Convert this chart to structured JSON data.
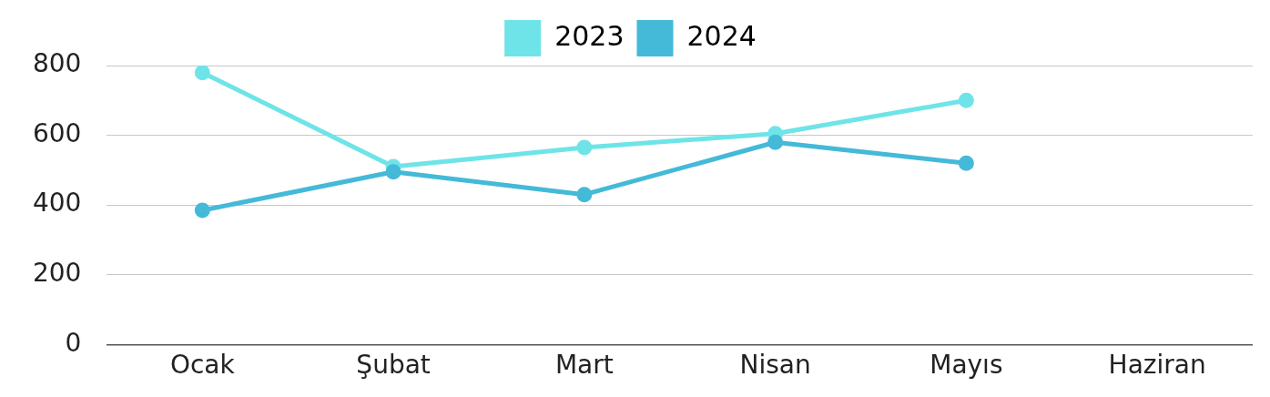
{
  "chart_data": {
    "type": "line",
    "categories": [
      "Ocak",
      "Şubat",
      "Mart",
      "Nisan",
      "Mayıs",
      "Haziran"
    ],
    "series": [
      {
        "name": "2023",
        "color": "#6ee4e8",
        "values": [
          780,
          510,
          565,
          605,
          700,
          null
        ]
      },
      {
        "name": "2024",
        "color": "#44b9d8",
        "values": [
          385,
          495,
          430,
          580,
          520,
          null
        ]
      }
    ],
    "ylim": [
      0,
      800
    ],
    "yticks": [
      0,
      200,
      400,
      600,
      800
    ],
    "grid": "y",
    "legend": "top",
    "marker": "circle",
    "line_style": "solid"
  }
}
